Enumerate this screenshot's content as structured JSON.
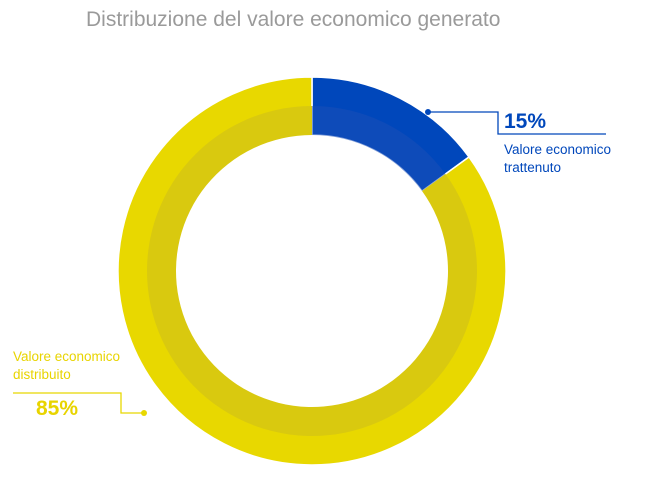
{
  "chart_data": {
    "type": "pie",
    "variant": "donut",
    "title": "Distribuzione del valore economico generato",
    "series": [
      {
        "name": "Valore economico trattenuto",
        "label_lines": [
          "Valore economico",
          "trattenuto"
        ],
        "value": 15,
        "value_label": "15%",
        "color": "#0047bb"
      },
      {
        "name": "Valore economico distribuito",
        "label_lines": [
          "Valore economico",
          "distribuito"
        ],
        "value": 85,
        "value_label": "85%",
        "color": "#e8d800"
      }
    ],
    "inner_ring_shade": "#d9c90f",
    "legend": "none"
  }
}
